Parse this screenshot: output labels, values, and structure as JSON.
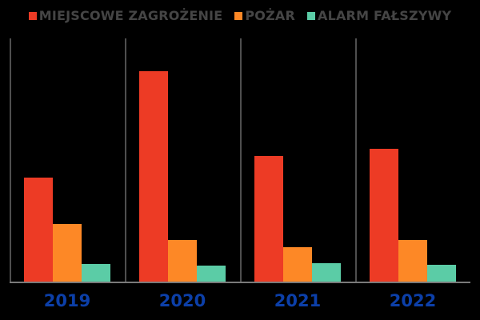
{
  "chart_data": {
    "type": "bar",
    "title": "",
    "categories": [
      "2019",
      "2020",
      "2021",
      "2022"
    ],
    "series": [
      {
        "name": "MIEJSCOWE ZAGROŻENIE",
        "color": "#ED3B25",
        "values": [
          131,
          264,
          158,
          167
        ]
      },
      {
        "name": "POŻAR",
        "color": "#FD8826",
        "values": [
          73,
          53,
          44,
          53
        ]
      },
      {
        "name": "ALARM FAŁSZYWY",
        "color": "#5BCCA6",
        "values": [
          23,
          21,
          24,
          22
        ]
      }
    ],
    "xlabel": "",
    "ylabel": "",
    "ylim": [
      0,
      300
    ],
    "y_axis_visible": false,
    "grid": "vertical separator line at left of each category group",
    "legend_position": "top-center"
  },
  "colors": {
    "background": "#000000",
    "legend_text": "#454545",
    "separator_line": "#4F4F4F",
    "baseline": "#7A7A7A",
    "year_label": "#0C3FA8"
  }
}
